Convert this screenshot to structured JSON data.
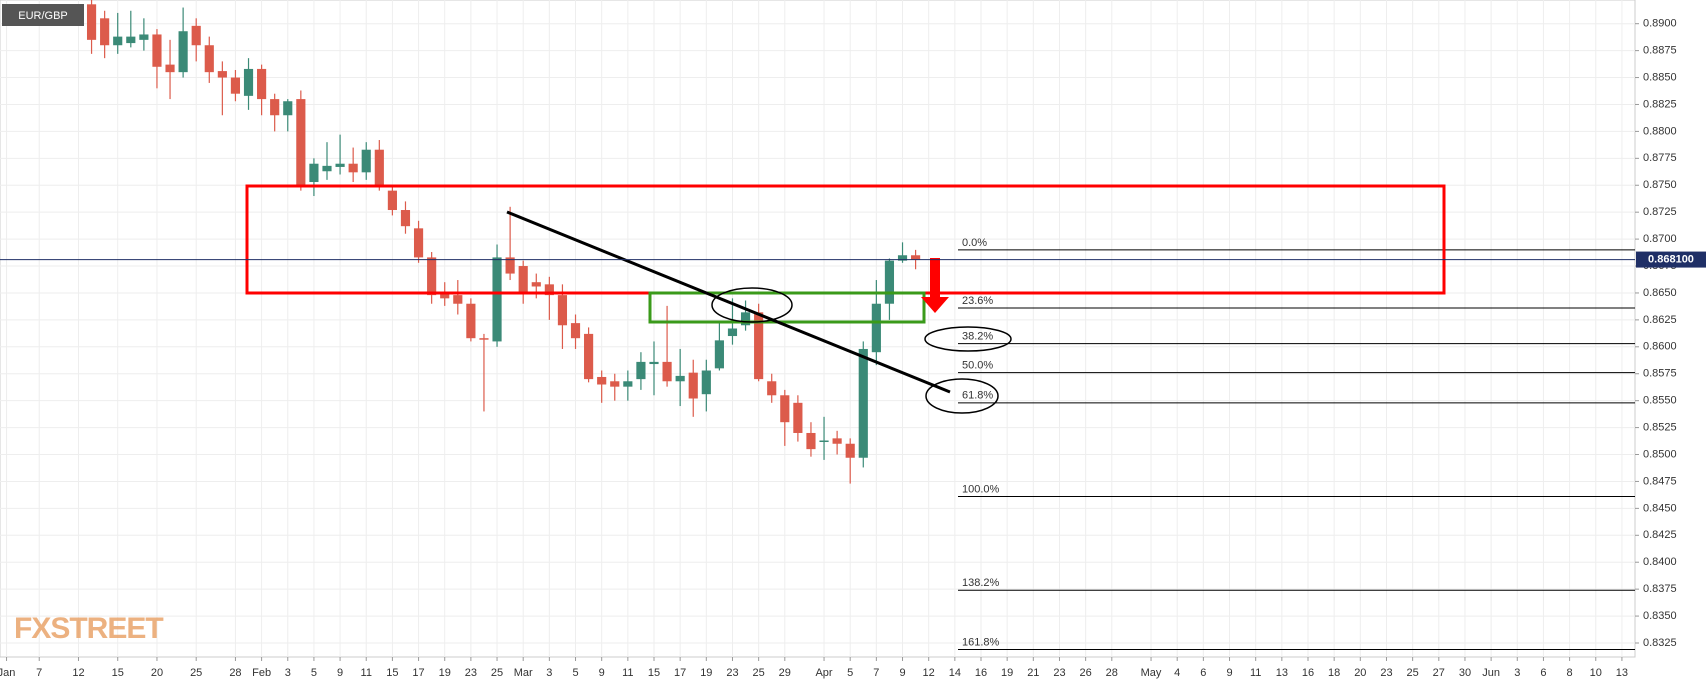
{
  "chart_data": {
    "type": "candlestick",
    "title": "EUR/GBP",
    "watermark": "FXSTREET",
    "x": [
      7,
      8,
      9,
      10,
      11,
      12,
      13,
      14,
      15,
      16,
      17,
      18,
      19,
      20,
      21,
      22,
      23,
      24,
      25,
      26,
      27,
      28,
      29,
      30,
      31,
      32,
      33,
      34,
      35,
      36,
      37,
      38,
      39,
      40,
      41,
      42,
      43,
      44,
      45,
      46,
      47,
      48,
      49,
      50,
      51,
      52,
      53,
      54,
      55,
      56,
      57,
      58,
      59,
      60,
      61,
      62,
      63,
      64,
      65,
      66,
      67,
      68,
      69,
      70
    ],
    "open": [
      0.8918,
      0.8905,
      0.888,
      0.8882,
      0.8885,
      0.889,
      0.8862,
      0.8855,
      0.8898,
      0.888,
      0.8856,
      0.885,
      0.8833,
      0.8858,
      0.883,
      0.8815,
      0.883,
      0.8753,
      0.8763,
      0.8767,
      0.877,
      0.8762,
      0.8783,
      0.8745,
      0.8727,
      0.871,
      0.8683,
      0.865,
      0.8648,
      0.864,
      0.8608,
      0.8605,
      0.8683,
      0.8675,
      0.866,
      0.8658,
      0.8648,
      0.8622,
      0.8612,
      0.8572,
      0.8568,
      0.8563,
      0.857,
      0.8584,
      0.8586,
      0.8568,
      0.8576,
      0.8556,
      0.858,
      0.861,
      0.862,
      0.8632,
      0.8568,
      0.8555,
      0.8548,
      0.852,
      0.8512,
      0.8515,
      0.851,
      0.8497,
      0.8595,
      0.864,
      0.868,
      0.8685
    ],
    "high": [
      0.8925,
      0.8912,
      0.891,
      0.8912,
      0.8905,
      0.8895,
      0.8885,
      0.8915,
      0.8905,
      0.8888,
      0.8865,
      0.8857,
      0.8868,
      0.8862,
      0.8835,
      0.883,
      0.8838,
      0.8775,
      0.879,
      0.8797,
      0.8785,
      0.879,
      0.8792,
      0.875,
      0.8735,
      0.8717,
      0.8688,
      0.866,
      0.8662,
      0.8645,
      0.8612,
      0.8695,
      0.873,
      0.868,
      0.8668,
      0.8665,
      0.8658,
      0.863,
      0.8618,
      0.8578,
      0.8575,
      0.8578,
      0.8595,
      0.8605,
      0.8638,
      0.8598,
      0.8588,
      0.8588,
      0.8622,
      0.8645,
      0.8643,
      0.864,
      0.8575,
      0.856,
      0.8555,
      0.853,
      0.8535,
      0.8522,
      0.8515,
      0.8605,
      0.8662,
      0.8682,
      0.8697,
      0.869
    ],
    "low": [
      0.8872,
      0.8868,
      0.8872,
      0.8878,
      0.8875,
      0.884,
      0.883,
      0.885,
      0.8865,
      0.8845,
      0.8815,
      0.8828,
      0.882,
      0.8815,
      0.88,
      0.88,
      0.8745,
      0.874,
      0.8755,
      0.876,
      0.8753,
      0.8755,
      0.8745,
      0.8722,
      0.8705,
      0.8678,
      0.864,
      0.8638,
      0.863,
      0.8605,
      0.854,
      0.86,
      0.8662,
      0.864,
      0.8645,
      0.8625,
      0.8598,
      0.8598,
      0.8567,
      0.8548,
      0.855,
      0.855,
      0.856,
      0.8555,
      0.8563,
      0.8545,
      0.8535,
      0.854,
      0.8578,
      0.8602,
      0.8615,
      0.8568,
      0.8548,
      0.8508,
      0.8512,
      0.8498,
      0.8495,
      0.85,
      0.8473,
      0.8488,
      0.8583,
      0.8625,
      0.8678,
      0.8672
    ],
    "close": [
      0.8885,
      0.888,
      0.8888,
      0.8888,
      0.889,
      0.886,
      0.8855,
      0.8893,
      0.888,
      0.8855,
      0.885,
      0.8835,
      0.8858,
      0.883,
      0.8815,
      0.8828,
      0.875,
      0.877,
      0.8768,
      0.877,
      0.8762,
      0.8783,
      0.875,
      0.8727,
      0.8712,
      0.8683,
      0.8648,
      0.8645,
      0.864,
      0.8608,
      0.8607,
      0.8683,
      0.8668,
      0.865,
      0.8656,
      0.8648,
      0.862,
      0.8608,
      0.857,
      0.8565,
      0.8563,
      0.8568,
      0.8586,
      0.8586,
      0.8568,
      0.8573,
      0.8552,
      0.8578,
      0.8606,
      0.8617,
      0.8632,
      0.857,
      0.8555,
      0.853,
      0.852,
      0.8505,
      0.8513,
      0.851,
      0.8497,
      0.8598,
      0.864,
      0.868,
      0.8685,
      0.8681
    ],
    "up_color": "#3b8a77",
    "down_color": "#dc5b4b",
    "xlim": [
      0,
      125
    ],
    "xticks": [
      {
        "value": 0.5,
        "label": "Jan"
      },
      {
        "value": 3,
        "label": "7"
      },
      {
        "value": 6,
        "label": "12"
      },
      {
        "value": 9,
        "label": "15"
      },
      {
        "value": 12,
        "label": "20"
      },
      {
        "value": 15,
        "label": "25"
      },
      {
        "value": 18,
        "label": "28"
      },
      {
        "value": 20,
        "label": "Feb"
      },
      {
        "value": 22,
        "label": "3"
      },
      {
        "value": 24,
        "label": "5"
      },
      {
        "value": 26,
        "label": "9"
      },
      {
        "value": 28,
        "label": "11"
      },
      {
        "value": 30,
        "label": "15"
      },
      {
        "value": 32,
        "label": "17"
      },
      {
        "value": 34,
        "label": "19"
      },
      {
        "value": 36,
        "label": "23"
      },
      {
        "value": 38,
        "label": "25"
      },
      {
        "value": 40,
        "label": "Mar"
      },
      {
        "value": 42,
        "label": "3"
      },
      {
        "value": 44,
        "label": "5"
      },
      {
        "value": 46,
        "label": "9"
      },
      {
        "value": 48,
        "label": "11"
      },
      {
        "value": 50,
        "label": "15"
      },
      {
        "value": 52,
        "label": "17"
      },
      {
        "value": 54,
        "label": "19"
      },
      {
        "value": 56,
        "label": "23"
      },
      {
        "value": 58,
        "label": "25"
      },
      {
        "value": 60,
        "label": "29"
      },
      {
        "value": 63,
        "label": "Apr"
      },
      {
        "value": 65,
        "label": "5"
      },
      {
        "value": 67,
        "label": "7"
      },
      {
        "value": 69,
        "label": "9"
      },
      {
        "value": 71,
        "label": "12"
      },
      {
        "value": 73,
        "label": "14"
      },
      {
        "value": 75,
        "label": "16"
      },
      {
        "value": 77,
        "label": "19"
      },
      {
        "value": 79,
        "label": "21"
      },
      {
        "value": 81,
        "label": "23"
      },
      {
        "value": 83,
        "label": "26"
      },
      {
        "value": 85,
        "label": "28"
      },
      {
        "value": 88,
        "label": "May"
      },
      {
        "value": 90,
        "label": "4"
      },
      {
        "value": 92,
        "label": "6"
      },
      {
        "value": 94,
        "label": "9"
      },
      {
        "value": 96,
        "label": "11"
      },
      {
        "value": 98,
        "label": "13"
      },
      {
        "value": 100,
        "label": "16"
      },
      {
        "value": 102,
        "label": "18"
      },
      {
        "value": 104,
        "label": "20"
      },
      {
        "value": 106,
        "label": "23"
      },
      {
        "value": 108,
        "label": "25"
      },
      {
        "value": 110,
        "label": "27"
      },
      {
        "value": 112,
        "label": "30"
      },
      {
        "value": 114,
        "label": "Jun"
      },
      {
        "value": 116,
        "label": "3"
      },
      {
        "value": 118,
        "label": "6"
      },
      {
        "value": 120,
        "label": "8"
      },
      {
        "value": 122,
        "label": "10"
      },
      {
        "value": 124,
        "label": "13"
      }
    ],
    "ylim": [
      0.8312,
      0.8922
    ],
    "yticks": [
      {
        "value": 0.8325,
        "label": "0.8325"
      },
      {
        "value": 0.835,
        "label": "0.8350"
      },
      {
        "value": 0.8375,
        "label": "0.8375"
      },
      {
        "value": 0.84,
        "label": "0.8400"
      },
      {
        "value": 0.8425,
        "label": "0.8425"
      },
      {
        "value": 0.845,
        "label": "0.8450"
      },
      {
        "value": 0.8475,
        "label": "0.8475"
      },
      {
        "value": 0.85,
        "label": "0.8500"
      },
      {
        "value": 0.8525,
        "label": "0.8525"
      },
      {
        "value": 0.855,
        "label": "0.8550"
      },
      {
        "value": 0.8575,
        "label": "0.8575"
      },
      {
        "value": 0.86,
        "label": "0.8600"
      },
      {
        "value": 0.8625,
        "label": "0.8625"
      },
      {
        "value": 0.865,
        "label": "0.8650"
      },
      {
        "value": 0.8675,
        "label": "0.8675"
      },
      {
        "value": 0.87,
        "label": "0.8700"
      },
      {
        "value": 0.8725,
        "label": "0.8725"
      },
      {
        "value": 0.875,
        "label": "0.8750"
      },
      {
        "value": 0.8775,
        "label": "0.8775"
      },
      {
        "value": 0.88,
        "label": "0.8800"
      },
      {
        "value": 0.8825,
        "label": "0.8825"
      },
      {
        "value": 0.885,
        "label": "0.8850"
      },
      {
        "value": 0.8875,
        "label": "0.8875"
      },
      {
        "value": 0.89,
        "label": "0.8900"
      }
    ],
    "grid": true,
    "last_price": {
      "value": 0.8681,
      "label": "0.868100"
    },
    "fib_levels": [
      {
        "value": 0.869,
        "label": "0.0%"
      },
      {
        "value": 0.8636,
        "label": "23.6%"
      },
      {
        "value": 0.8603,
        "label": "38.2%"
      },
      {
        "value": 0.8576,
        "label": "50.0%"
      },
      {
        "value": 0.8548,
        "label": "61.8%"
      },
      {
        "value": 0.8461,
        "label": "100.0%"
      },
      {
        "value": 0.8374,
        "label": "138.2%"
      },
      {
        "value": 0.8319,
        "label": "161.8%"
      }
    ]
  }
}
